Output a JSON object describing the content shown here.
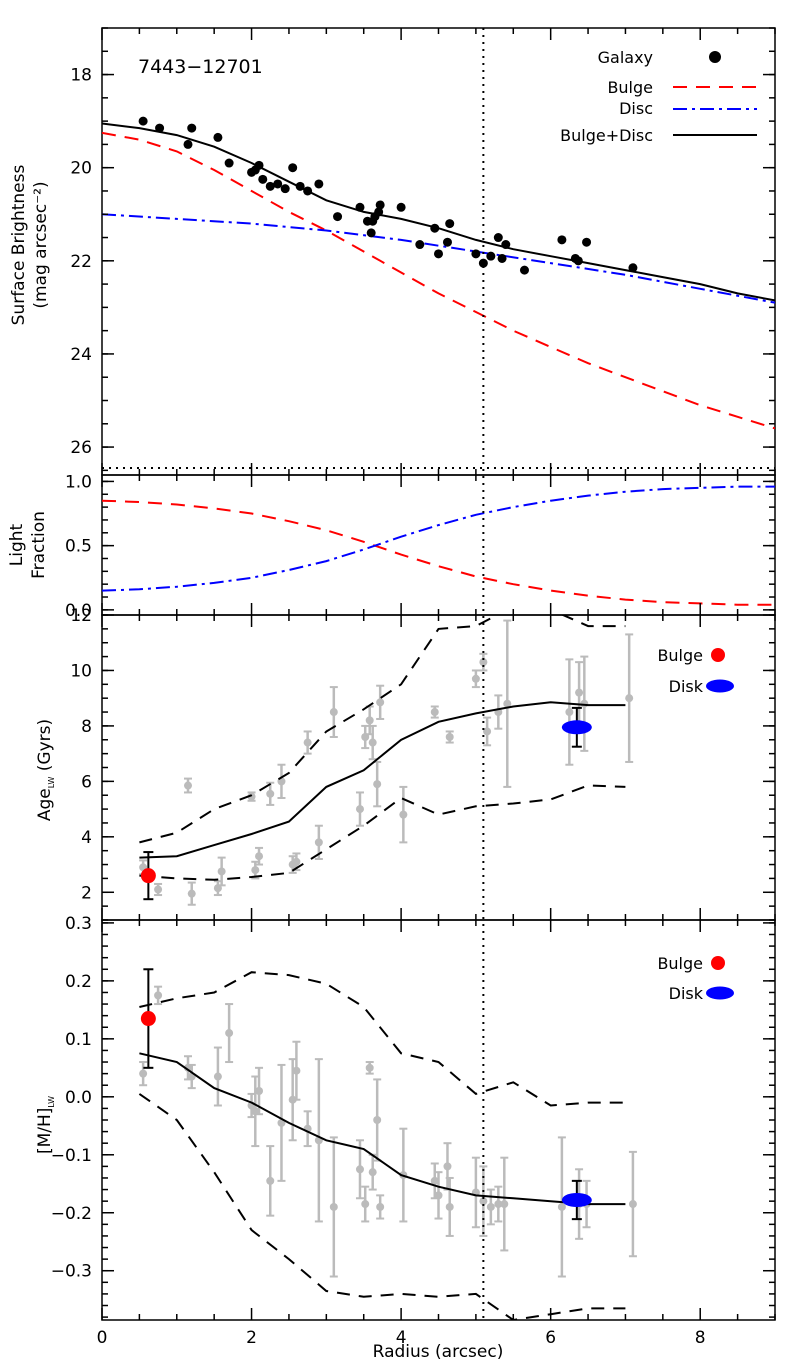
{
  "figure": {
    "galaxy_id": "7443−12701",
    "x_label": "Radius (arcsec)",
    "x_range": [
      0,
      9
    ],
    "x_ticks": [
      0,
      2,
      4,
      6,
      8
    ],
    "vertical_marker_x": 5.1,
    "colors": {
      "bulge": "#ff0000",
      "disc": "#0000ff",
      "total": "#000000",
      "points": "#000000",
      "grey": "#bbbbbb",
      "dashed": "#000000"
    }
  },
  "chart_data": [
    {
      "type": "scatter",
      "panel": "surface-brightness",
      "ylabel_line1": "Surface Brightness",
      "ylabel_line2": "(mag arcsec⁻²)",
      "ylim": [
        17.0,
        26.6
      ],
      "y_inverted": true,
      "y_ticks": [
        18,
        20,
        22,
        24,
        26
      ],
      "sky_limit": 26.45,
      "legend": [
        "Galaxy",
        "Bulge",
        "Disc",
        "Bulge+Disc"
      ],
      "galaxy_points": {
        "x": [
          0.55,
          0.77,
          1.15,
          1.2,
          1.55,
          1.7,
          2.0,
          2.05,
          2.1,
          2.15,
          2.25,
          2.35,
          2.45,
          2.55,
          2.65,
          2.75,
          2.9,
          3.15,
          3.45,
          3.55,
          3.6,
          3.62,
          3.65,
          3.7,
          3.72,
          4.0,
          4.25,
          4.45,
          4.5,
          4.62,
          4.65,
          5.0,
          5.1,
          5.2,
          5.3,
          5.35,
          5.4,
          5.65,
          6.15,
          6.33,
          6.37,
          6.48,
          7.1
        ],
        "y": [
          19.0,
          19.15,
          19.5,
          19.15,
          19.35,
          19.9,
          20.1,
          20.05,
          19.95,
          20.25,
          20.4,
          20.35,
          20.45,
          20.0,
          20.4,
          20.5,
          20.35,
          21.05,
          20.85,
          21.15,
          21.4,
          21.15,
          21.05,
          20.95,
          20.8,
          20.85,
          21.65,
          21.3,
          21.85,
          21.6,
          21.2,
          21.85,
          22.05,
          21.9,
          21.5,
          21.95,
          21.65,
          22.2,
          21.55,
          21.95,
          22.0,
          21.6,
          22.15
        ]
      },
      "bulge_curve": {
        "x": [
          0,
          0.5,
          1,
          1.5,
          2,
          2.5,
          3,
          3.5,
          4,
          4.5,
          5,
          5.5,
          6,
          6.5,
          7,
          7.5,
          8,
          8.5,
          9
        ],
        "y": [
          19.25,
          19.4,
          19.65,
          20.05,
          20.5,
          20.95,
          21.35,
          21.8,
          22.25,
          22.7,
          23.1,
          23.5,
          23.85,
          24.2,
          24.5,
          24.8,
          25.1,
          25.35,
          25.6
        ]
      },
      "disc_curve": {
        "x": [
          0,
          1,
          2,
          3,
          4,
          5,
          6,
          7,
          8,
          9
        ],
        "y": [
          21.0,
          21.1,
          21.2,
          21.35,
          21.55,
          21.8,
          22.05,
          22.3,
          22.6,
          22.9
        ]
      },
      "total_curve": {
        "x": [
          0,
          0.5,
          1,
          1.5,
          2,
          2.5,
          3,
          3.5,
          4,
          4.5,
          5,
          5.5,
          6,
          6.5,
          7,
          7.5,
          8,
          8.5,
          9
        ],
        "y": [
          19.05,
          19.15,
          19.3,
          19.55,
          19.9,
          20.3,
          20.7,
          20.95,
          21.1,
          21.3,
          21.55,
          21.75,
          21.9,
          22.05,
          22.2,
          22.35,
          22.5,
          22.7,
          22.85
        ]
      }
    },
    {
      "type": "line",
      "panel": "light-fraction",
      "ylabel_line1": "Light",
      "ylabel_line2": "Fraction",
      "ylim": [
        -0.04,
        1.05
      ],
      "y_ticks": [
        0.0,
        0.5,
        1.0
      ],
      "y_tick_labels": [
        "0.0",
        "0.5",
        "1.0"
      ],
      "bulge_fraction": {
        "x": [
          0,
          0.5,
          1,
          1.5,
          2,
          2.5,
          3,
          3.5,
          4,
          4.5,
          5,
          5.5,
          6,
          6.5,
          7,
          7.5,
          8,
          8.5,
          9
        ],
        "y": [
          0.85,
          0.84,
          0.82,
          0.79,
          0.75,
          0.69,
          0.62,
          0.53,
          0.43,
          0.34,
          0.26,
          0.2,
          0.15,
          0.11,
          0.08,
          0.06,
          0.05,
          0.04,
          0.04
        ]
      },
      "disc_fraction": {
        "x": [
          0,
          0.5,
          1,
          1.5,
          2,
          2.5,
          3,
          3.5,
          4,
          4.5,
          5,
          5.5,
          6,
          6.5,
          7,
          7.5,
          8,
          8.5,
          9
        ],
        "y": [
          0.15,
          0.16,
          0.18,
          0.21,
          0.25,
          0.31,
          0.38,
          0.47,
          0.57,
          0.66,
          0.74,
          0.8,
          0.85,
          0.89,
          0.92,
          0.94,
          0.95,
          0.96,
          0.96
        ]
      }
    },
    {
      "type": "scatter",
      "panel": "age",
      "ylabel_main": "Age",
      "ylabel_sub": "LW",
      "ylabel_unit": "(Gyrs)",
      "ylim": [
        1.0,
        12.0
      ],
      "y_ticks": [
        2,
        4,
        6,
        8,
        10,
        12
      ],
      "legend": [
        "Bulge",
        "Disk"
      ],
      "grey_points": {
        "x": [
          0.55,
          0.75,
          1.15,
          1.2,
          1.55,
          1.6,
          2.0,
          2.05,
          2.1,
          2.25,
          2.4,
          2.55,
          2.6,
          2.75,
          2.9,
          3.1,
          3.45,
          3.52,
          3.58,
          3.62,
          3.68,
          3.72,
          4.03,
          4.45,
          4.65,
          5.0,
          5.1,
          5.15,
          5.3,
          5.42,
          6.25,
          6.38,
          6.45,
          7.05
        ],
        "y": [
          2.9,
          2.1,
          5.85,
          1.95,
          2.15,
          2.75,
          5.45,
          2.8,
          3.3,
          5.55,
          6.0,
          3.0,
          3.1,
          7.4,
          3.8,
          8.5,
          5.0,
          7.6,
          8.2,
          7.4,
          5.9,
          8.85,
          4.8,
          8.5,
          7.6,
          9.7,
          10.3,
          7.8,
          8.5,
          8.8,
          8.5,
          9.2,
          8.8,
          9.0
        ],
        "err": [
          0.25,
          0.2,
          0.25,
          0.4,
          0.25,
          0.5,
          0.15,
          0.3,
          0.3,
          0.4,
          0.6,
          0.3,
          0.3,
          0.4,
          0.6,
          0.9,
          0.6,
          0.4,
          0.5,
          0.6,
          0.8,
          0.6,
          1.0,
          0.2,
          0.2,
          0.3,
          0.3,
          0.5,
          0.6,
          3.0,
          1.9,
          1.1,
          1.7,
          2.3
        ]
      },
      "mean_curve": {
        "x": [
          0.5,
          1,
          1.5,
          2,
          2.5,
          3,
          3.5,
          4,
          4.5,
          5,
          5.5,
          6,
          6.5,
          7
        ],
        "y": [
          3.25,
          3.3,
          3.7,
          4.1,
          4.55,
          5.8,
          6.4,
          7.5,
          8.15,
          8.45,
          8.7,
          8.85,
          8.75,
          8.75
        ]
      },
      "upper_envelope": {
        "x": [
          0.5,
          1,
          1.5,
          2,
          2.5,
          3,
          3.5,
          4,
          4.5,
          5,
          5.5,
          6,
          6.5,
          7
        ],
        "y": [
          3.8,
          4.15,
          5.0,
          5.5,
          6.3,
          7.8,
          8.6,
          9.5,
          11.5,
          11.6,
          12.3,
          12.2,
          11.6,
          11.6
        ]
      },
      "lower_envelope": {
        "x": [
          0.5,
          1,
          1.5,
          2,
          2.5,
          3,
          3.5,
          4,
          4.5,
          5,
          5.5,
          6,
          6.5,
          7
        ],
        "y": [
          2.6,
          2.5,
          2.45,
          2.55,
          2.7,
          3.55,
          4.4,
          5.4,
          4.8,
          5.1,
          5.2,
          5.35,
          5.85,
          5.8
        ]
      },
      "bulge_point": {
        "x": 0.62,
        "y": 2.6,
        "err": 0.85
      },
      "disk_point": {
        "x": 6.35,
        "y": 7.95,
        "err": 0.7
      }
    },
    {
      "type": "scatter",
      "panel": "metallicity",
      "ylabel_main": "[M/H]",
      "ylabel_sub": "LW",
      "ylim": [
        -0.385,
        0.305
      ],
      "y_ticks": [
        -0.3,
        -0.2,
        -0.1,
        0.0,
        0.1,
        0.2,
        0.3
      ],
      "y_tick_labels": [
        "−0.3",
        "−0.2",
        "−0.1",
        "0.0",
        "0.1",
        "0.2",
        "0.3"
      ],
      "legend": [
        "Bulge",
        "Disk"
      ],
      "grey_points": {
        "x": [
          0.55,
          0.75,
          1.15,
          1.2,
          1.55,
          1.7,
          2.0,
          2.05,
          2.1,
          2.25,
          2.4,
          2.55,
          2.6,
          2.75,
          2.9,
          3.1,
          3.45,
          3.52,
          3.58,
          3.62,
          3.68,
          3.72,
          4.03,
          4.45,
          4.5,
          4.62,
          4.65,
          5.0,
          5.1,
          5.2,
          5.3,
          5.38,
          6.15,
          6.38,
          6.48,
          7.1
        ],
        "y": [
          0.04,
          0.175,
          0.05,
          0.035,
          0.035,
          0.11,
          -0.015,
          -0.025,
          0.01,
          -0.145,
          -0.045,
          -0.005,
          0.045,
          -0.055,
          -0.075,
          -0.19,
          -0.125,
          -0.185,
          0.05,
          -0.13,
          -0.04,
          -0.19,
          -0.135,
          -0.145,
          -0.17,
          -0.12,
          -0.19,
          -0.165,
          -0.18,
          -0.19,
          -0.185,
          -0.185,
          -0.19,
          -0.185,
          -0.185,
          -0.185
        ],
        "err": [
          0.02,
          0.015,
          0.02,
          0.02,
          0.05,
          0.05,
          0.02,
          0.06,
          0.04,
          0.06,
          0.1,
          0.07,
          0.05,
          0.03,
          0.14,
          0.12,
          0.05,
          0.03,
          0.01,
          0.03,
          0.07,
          0.02,
          0.08,
          0.03,
          0.04,
          0.04,
          0.05,
          0.06,
          0.06,
          0.03,
          0.03,
          0.08,
          0.12,
          0.06,
          0.04,
          0.09
        ]
      },
      "mean_curve": {
        "x": [
          0.5,
          1,
          1.5,
          2,
          2.5,
          3,
          3.5,
          4,
          4.5,
          5,
          5.5,
          6,
          6.5,
          7
        ],
        "y": [
          0.075,
          0.06,
          0.015,
          -0.01,
          -0.045,
          -0.075,
          -0.09,
          -0.135,
          -0.155,
          -0.17,
          -0.175,
          -0.18,
          -0.185,
          -0.185
        ]
      },
      "upper_envelope": {
        "x": [
          0.5,
          1,
          1.5,
          2,
          2.5,
          3,
          3.5,
          4,
          4.5,
          5,
          5.5,
          6,
          6.5,
          7
        ],
        "y": [
          0.155,
          0.17,
          0.18,
          0.215,
          0.21,
          0.195,
          0.155,
          0.075,
          0.06,
          0.005,
          0.025,
          -0.015,
          -0.01,
          -0.01
        ]
      },
      "lower_envelope": {
        "x": [
          0.5,
          1,
          1.5,
          2,
          2.5,
          3,
          3.5,
          4,
          4.5,
          5,
          5.5,
          6,
          6.5,
          7
        ],
        "y": [
          0.005,
          -0.04,
          -0.13,
          -0.23,
          -0.28,
          -0.335,
          -0.345,
          -0.34,
          -0.345,
          -0.34,
          -0.385,
          -0.375,
          -0.365,
          -0.365
        ]
      },
      "bulge_point": {
        "x": 0.62,
        "y": 0.135,
        "err": 0.085
      },
      "disk_point": {
        "x": 6.35,
        "y": -0.178,
        "err": 0.033
      }
    }
  ]
}
